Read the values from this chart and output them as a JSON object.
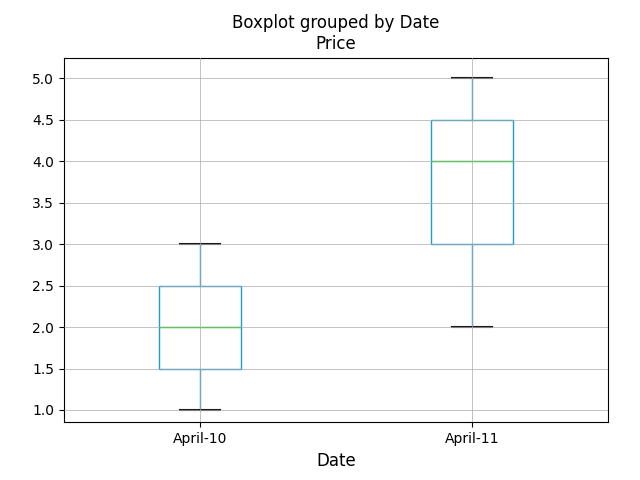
{
  "title": "Boxplot grouped by Date",
  "subtitle": "Price",
  "xlabel": "Date",
  "groups": [
    "April-10",
    "April-11"
  ],
  "data": {
    "April-10": [
      1,
      1,
      2,
      2,
      2,
      3
    ],
    "April-11": [
      2,
      3,
      4,
      4,
      5,
      5
    ]
  },
  "box_stats": [
    {
      "whislo": 1.0,
      "q1": 1.5,
      "med": 2.0,
      "q3": 2.5,
      "whishi": 3.0
    },
    {
      "whislo": 2.0,
      "q1": 3.0,
      "med": 4.0,
      "q3": 4.5,
      "whishi": 5.0
    }
  ],
  "ylim": [
    0.85,
    5.25
  ],
  "yticks": [
    1.0,
    1.5,
    2.0,
    2.5,
    3.0,
    3.5,
    4.0,
    4.5,
    5.0
  ],
  "box_color": "#1f9bcf",
  "median_color": "#00cc00",
  "cap_color": "#1a1a1a",
  "background_color": "#ffffff",
  "title_fontsize": 12,
  "label_fontsize": 12,
  "box_width": 0.3,
  "figsize": [
    6.4,
    4.8
  ]
}
